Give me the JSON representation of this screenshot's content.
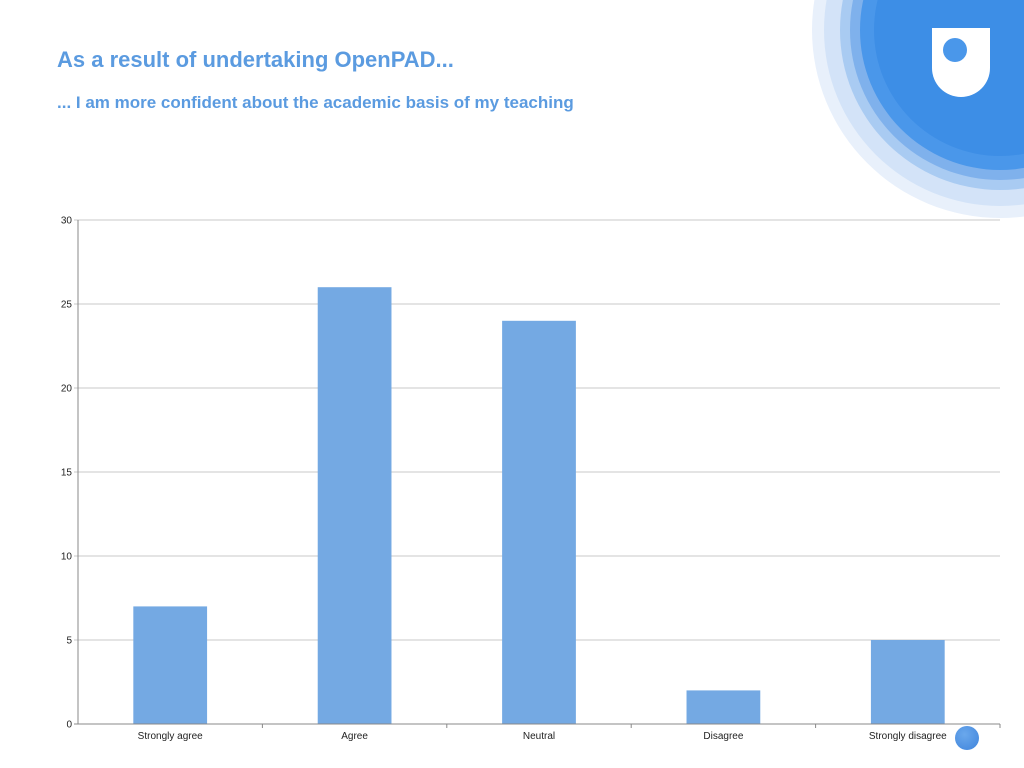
{
  "slide": {
    "title": "As a result of undertaking OpenPAD...",
    "subtitle": "... I am more confident about the academic basis of my teaching"
  },
  "colors": {
    "heading": "#5b9be0",
    "bar": "#74a9e3",
    "grid": "#c8c8c8",
    "axis": "#888888",
    "logo_blue": "#4a97ea"
  },
  "logo": {
    "icon": "open-university-shield-logo"
  },
  "chart_data": {
    "type": "bar",
    "categories": [
      "Strongly agree",
      "Agree",
      "Neutral",
      "Disagree",
      "Strongly disagree"
    ],
    "values": [
      7,
      26,
      24,
      2,
      5
    ],
    "title": "",
    "xlabel": "",
    "ylabel": "",
    "ylim": [
      0,
      30
    ],
    "yticks": [
      0,
      5,
      10,
      15,
      20,
      25,
      30
    ],
    "grid": true,
    "legend": "none"
  }
}
